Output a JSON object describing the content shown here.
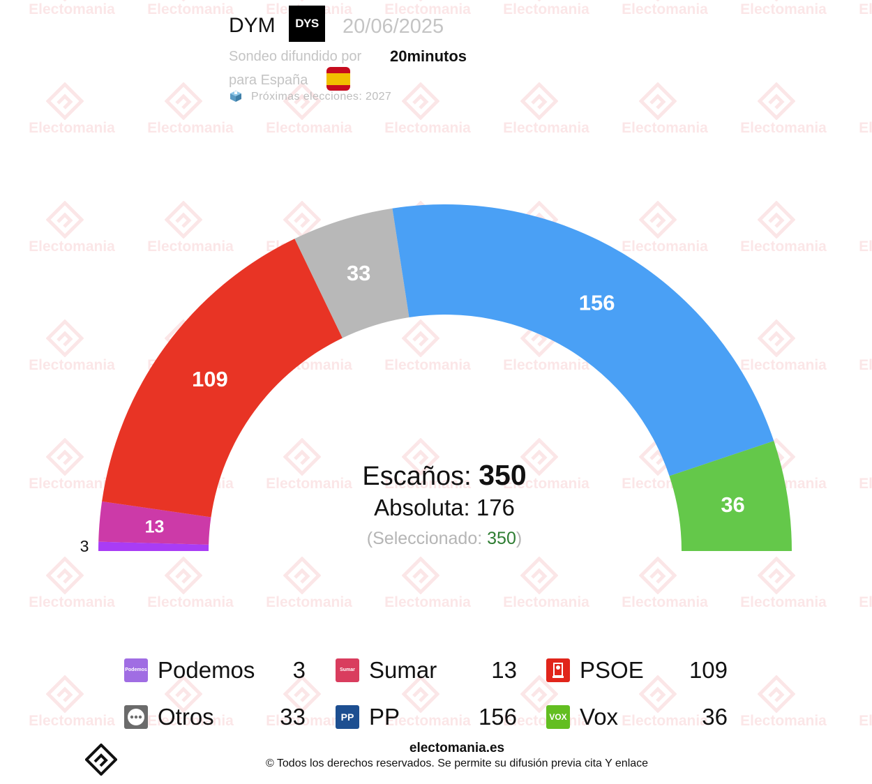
{
  "header": {
    "pollster": "DYM",
    "pollster_logo_text": "DYS",
    "date": "20/06/2025",
    "published_by_label": "Sondeo difundido por",
    "media": "20minutos",
    "scope_label": "para España",
    "next_elections": "Próximas elecciones: 2027"
  },
  "watermark": {
    "text": "Electomania"
  },
  "summary": {
    "seats_label": "Escaños:",
    "seats_total": "350",
    "majority_label": "Absoluta: 176",
    "selected_prefix": "(Seleccionado:",
    "selected_value": "350",
    "selected_suffix": ")"
  },
  "chart_data": {
    "type": "pie",
    "subtype": "hemicycle",
    "total": 350,
    "majority": 176,
    "series": [
      {
        "name": "Podemos",
        "value": 3,
        "color": "#a93cf5"
      },
      {
        "name": "Sumar",
        "value": 13,
        "color": "#cc3aa8"
      },
      {
        "name": "PSOE",
        "value": 109,
        "color": "#e83425"
      },
      {
        "name": "Otros",
        "value": 33,
        "color": "#b8b8b8"
      },
      {
        "name": "PP",
        "value": 156,
        "color": "#4aa0f5"
      },
      {
        "name": "Vox",
        "value": 36,
        "color": "#64c84a"
      }
    ]
  },
  "legend": [
    {
      "name": "Podemos",
      "seats": "3",
      "logo_color": "#a06de3",
      "logo_text": "Podemos",
      "icon": "podemos-logo-icon"
    },
    {
      "name": "Sumar",
      "seats": "13",
      "logo_color": "#d93d5e",
      "logo_text": "Sumar",
      "icon": "sumar-logo-icon"
    },
    {
      "name": "PSOE",
      "seats": "109",
      "logo_color": "#e1251b",
      "logo_text": "",
      "icon": "psoe-logo-icon"
    },
    {
      "name": "Otros",
      "seats": "33",
      "logo_color": "#6b6b6b",
      "logo_text": "",
      "icon": "otros-ellipsis-icon"
    },
    {
      "name": "PP",
      "seats": "156",
      "logo_color": "#1d4f91",
      "logo_text": "PP",
      "icon": "pp-logo-icon"
    },
    {
      "name": "Vox",
      "seats": "36",
      "logo_color": "#63be21",
      "logo_text": "VOX",
      "icon": "vox-logo-icon"
    }
  ],
  "footer": {
    "site": "electomania.es",
    "copyright": "© Todos los derechos reservados. Se permite su difusión previa cita Y enlace"
  }
}
